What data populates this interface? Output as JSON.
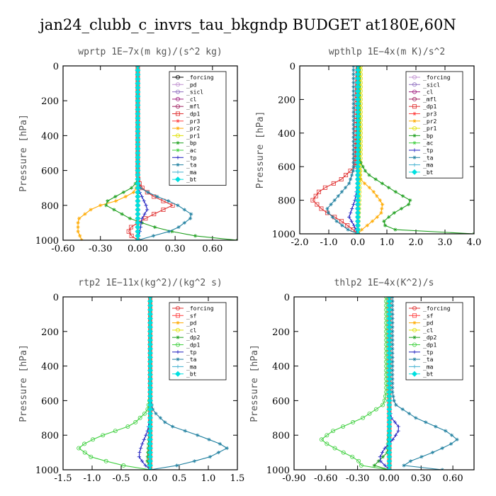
{
  "figure_title": "jan24_clubb_c_invrs_tau_bkgndp  BUDGET at180E,60N",
  "chart_data": [
    {
      "type": "line",
      "title": "wprtp   1E−7x(m kg)/(s^2 kg)",
      "ylabel": "Pressure [hPa]",
      "xlim": [
        -0.6,
        0.8
      ],
      "ylim": [
        1000,
        0
      ],
      "xticks": [
        "-0.60",
        "-0.30",
        "0.00",
        "0.30",
        "0.60"
      ],
      "xtick_values": [
        -0.6,
        -0.3,
        0.0,
        0.3,
        0.6
      ],
      "yticks": [
        "0",
        "200",
        "400",
        "600",
        "800",
        "1000"
      ],
      "ytick_values": [
        0,
        200,
        400,
        600,
        800,
        1000
      ],
      "legend_position": "top-right",
      "series": [
        {
          "name": "_forcing",
          "color": "#000000",
          "marker": "circle",
          "x": [
            0,
            0
          ],
          "y": [
            0,
            1000
          ]
        },
        {
          "name": "_pd",
          "color": "#c090d0",
          "marker": "circle",
          "x": [
            0,
            0
          ],
          "y": [
            0,
            1000
          ]
        },
        {
          "name": "_sicl",
          "color": "#9070c0",
          "marker": "circle",
          "x": [
            0,
            0
          ],
          "y": [
            0,
            1000
          ]
        },
        {
          "name": "_cl",
          "color": "#a02080",
          "marker": "circle",
          "x": [
            0,
            0
          ],
          "y": [
            0,
            1000
          ]
        },
        {
          "name": "_mfl",
          "color": "#a02060",
          "marker": "circle",
          "x": [
            0,
            0
          ],
          "y": [
            0,
            1000
          ]
        },
        {
          "name": "_dp1",
          "color": "#e03030",
          "marker": "square",
          "x": [
            0,
            0,
            0.02,
            0.1,
            0.28,
            0.1,
            -0.05,
            -0.08,
            0
          ],
          "y": [
            0,
            640,
            690,
            740,
            800,
            860,
            920,
            960,
            1000
          ]
        },
        {
          "name": "_pr3",
          "color": "#ff4040",
          "marker": "star",
          "x": [
            0,
            0,
            0,
            0
          ],
          "y": [
            0,
            600,
            800,
            1000
          ]
        },
        {
          "name": "_pr2",
          "color": "#ffaa00",
          "marker": "star",
          "x": [
            0,
            0,
            -0.02,
            -0.15,
            -0.35,
            -0.48,
            -0.48,
            -0.45
          ],
          "y": [
            0,
            660,
            720,
            770,
            810,
            880,
            950,
            1000
          ]
        },
        {
          "name": "_pr1",
          "color": "#e0e000",
          "marker": "circle",
          "x": [
            0,
            0,
            0
          ],
          "y": [
            0,
            700,
            1000
          ]
        },
        {
          "name": "_bp",
          "color": "#20a020",
          "marker": "star",
          "x": [
            0,
            0,
            -0.05,
            -0.18,
            -0.28,
            -0.05,
            0.2,
            0.5,
            0.8
          ],
          "y": [
            0,
            660,
            700,
            750,
            790,
            880,
            940,
            980,
            1000
          ]
        },
        {
          "name": "_ac",
          "color": "#40d040",
          "marker": "star",
          "x": [
            0,
            0,
            0
          ],
          "y": [
            0,
            700,
            1000
          ]
        },
        {
          "name": "_tp",
          "color": "#2020c0",
          "marker": "plus",
          "x": [
            0,
            0,
            0.04,
            0.08,
            0.03,
            0.02,
            0
          ],
          "y": [
            0,
            700,
            760,
            820,
            880,
            940,
            1000
          ]
        },
        {
          "name": "_ta",
          "color": "#2080a0",
          "marker": "star",
          "x": [
            0,
            0,
            0.02,
            0.12,
            0.3,
            0.45,
            0.3,
            0.05,
            0
          ],
          "y": [
            0,
            660,
            700,
            740,
            790,
            860,
            940,
            990,
            1000
          ]
        },
        {
          "name": "_ma",
          "color": "#40b0d0",
          "marker": "plus",
          "x": [
            0,
            0,
            0
          ],
          "y": [
            0,
            700,
            1000
          ]
        },
        {
          "name": "_bt",
          "color": "#00e0e0",
          "marker": "diamond",
          "x": [
            0,
            0
          ],
          "y": [
            0,
            1000
          ]
        }
      ]
    },
    {
      "type": "line",
      "title": "wpthlp   1E−4x(m K)/s^2",
      "ylabel": "Pressure [hPa]",
      "xlim": [
        -2.0,
        4.0
      ],
      "ylim": [
        1000,
        0
      ],
      "xticks": [
        "-2.0",
        "-1.0",
        "0.0",
        "1.0",
        "2.0",
        "3.0",
        "4.0"
      ],
      "xtick_values": [
        -2,
        -1,
        0,
        1,
        2,
        3,
        4
      ],
      "yticks": [
        "0",
        "200",
        "400",
        "600",
        "800",
        "1000"
      ],
      "ytick_values": [
        0,
        200,
        400,
        600,
        800,
        1000
      ],
      "legend_position": "top-right",
      "series": [
        {
          "name": "_forcing",
          "color": "#c090d0",
          "marker": "circle",
          "x": [
            0,
            0
          ],
          "y": [
            0,
            1000
          ]
        },
        {
          "name": "_sicl",
          "color": "#9070c0",
          "marker": "circle",
          "x": [
            0,
            0
          ],
          "y": [
            0,
            1000
          ]
        },
        {
          "name": "_cl",
          "color": "#a02080",
          "marker": "circle",
          "x": [
            0,
            0
          ],
          "y": [
            0,
            1000
          ]
        },
        {
          "name": "_mfl",
          "color": "#a02060",
          "marker": "circle",
          "x": [
            0,
            0
          ],
          "y": [
            0,
            1000
          ]
        },
        {
          "name": "_dp1",
          "color": "#e03030",
          "marker": "square",
          "x": [
            0,
            -0.1,
            -0.6,
            -1.3,
            -1.55,
            -1.2,
            -0.6,
            -0.2,
            0
          ],
          "y": [
            0,
            600,
            680,
            740,
            800,
            860,
            920,
            970,
            1000
          ]
        },
        {
          "name": "_pr3",
          "color": "#ff4040",
          "marker": "star",
          "x": [
            0,
            0,
            0,
            0
          ],
          "y": [
            0,
            600,
            800,
            1000
          ]
        },
        {
          "name": "_pr2",
          "color": "#ffaa00",
          "marker": "star",
          "x": [
            0.05,
            0.05,
            0.1,
            0.5,
            0.85,
            0.8,
            0.4,
            0.1,
            0
          ],
          "y": [
            0,
            600,
            680,
            740,
            820,
            880,
            940,
            980,
            1000
          ]
        },
        {
          "name": "_pr1",
          "color": "#e0e000",
          "marker": "circle",
          "x": [
            0.1,
            0.1,
            0.05,
            0
          ],
          "y": [
            0,
            500,
            800,
            1000
          ]
        },
        {
          "name": "_bp",
          "color": "#20a020",
          "marker": "star",
          "x": [
            0.05,
            0.05,
            0.3,
            1.2,
            1.9,
            1.2,
            0.8,
            1.5,
            4.0
          ],
          "y": [
            0,
            560,
            640,
            740,
            810,
            880,
            940,
            990,
            1000
          ]
        },
        {
          "name": "_ac",
          "color": "#40d040",
          "marker": "star",
          "x": [
            0,
            0,
            0
          ],
          "y": [
            0,
            700,
            1000
          ]
        },
        {
          "name": "_tp",
          "color": "#2020c0",
          "marker": "plus",
          "x": [
            0,
            0,
            -0.1,
            -0.3,
            -0.1,
            0
          ],
          "y": [
            0,
            700,
            800,
            900,
            960,
            1000
          ]
        },
        {
          "name": "_ta",
          "color": "#2080a0",
          "marker": "star",
          "x": [
            -0.15,
            -0.15,
            -0.3,
            -0.7,
            -1.1,
            -0.7,
            -0.3,
            0
          ],
          "y": [
            0,
            620,
            700,
            780,
            860,
            930,
            980,
            1000
          ]
        },
        {
          "name": "_ma",
          "color": "#40b0d0",
          "marker": "plus",
          "x": [
            0,
            0,
            0
          ],
          "y": [
            0,
            700,
            1000
          ]
        },
        {
          "name": "_bt",
          "color": "#00e0e0",
          "marker": "diamond",
          "x": [
            0,
            0
          ],
          "y": [
            0,
            1000
          ]
        }
      ]
    },
    {
      "type": "line",
      "title": "rtp2   1E−11x(kg^2)/(kg^2 s)",
      "ylabel": "Pressure [hPa]",
      "xlim": [
        -1.5,
        1.5
      ],
      "ylim": [
        1000,
        0
      ],
      "xticks": [
        "-1.5",
        "-1.0",
        "-0.5",
        "0.0",
        "0.5",
        "1.0",
        "1.5"
      ],
      "xtick_values": [
        -1.5,
        -1.0,
        -0.5,
        0.0,
        0.5,
        1.0,
        1.5
      ],
      "yticks": [
        "0",
        "200",
        "400",
        "600",
        "800",
        "1000"
      ],
      "ytick_values": [
        0,
        200,
        400,
        600,
        800,
        1000
      ],
      "legend_position": "top-right",
      "series": [
        {
          "name": "_forcing",
          "color": "#e03030",
          "marker": "circle",
          "x": [
            0,
            0
          ],
          "y": [
            0,
            1000
          ]
        },
        {
          "name": "_sf",
          "color": "#ff4040",
          "marker": "square",
          "x": [
            0,
            0
          ],
          "y": [
            0,
            1000
          ]
        },
        {
          "name": "_pd",
          "color": "#ffaa00",
          "marker": "star",
          "x": [
            0,
            0
          ],
          "y": [
            0,
            1000
          ]
        },
        {
          "name": "_cl",
          "color": "#e0e000",
          "marker": "circle",
          "x": [
            0,
            0
          ],
          "y": [
            0,
            1000
          ]
        },
        {
          "name": "_dp2",
          "color": "#20a020",
          "marker": "star",
          "x": [
            0,
            0,
            -0.05,
            0
          ],
          "y": [
            0,
            700,
            950,
            1000
          ]
        },
        {
          "name": "_dp1",
          "color": "#40d040",
          "marker": "circle",
          "x": [
            0,
            0,
            -0.05,
            -0.3,
            -0.9,
            -1.25,
            -1.0,
            -0.4,
            0
          ],
          "y": [
            0,
            580,
            660,
            740,
            810,
            870,
            930,
            980,
            1000
          ]
        },
        {
          "name": "_tp",
          "color": "#2020c0",
          "marker": "plus",
          "x": [
            0,
            0,
            -0.05,
            -0.15,
            -0.2,
            -0.1,
            0
          ],
          "y": [
            0,
            700,
            780,
            860,
            920,
            970,
            1000
          ]
        },
        {
          "name": "_ta",
          "color": "#2080a0",
          "marker": "star",
          "x": [
            0,
            0,
            0.05,
            0.3,
            0.9,
            1.35,
            1.0,
            0.4,
            0
          ],
          "y": [
            0,
            580,
            660,
            740,
            810,
            870,
            930,
            980,
            1000
          ]
        },
        {
          "name": "_ma",
          "color": "#40b0d0",
          "marker": "plus",
          "x": [
            0,
            0,
            0
          ],
          "y": [
            0,
            700,
            1000
          ]
        },
        {
          "name": "_bt",
          "color": "#00e0e0",
          "marker": "diamond",
          "x": [
            0,
            0
          ],
          "y": [
            0,
            1000
          ]
        }
      ]
    },
    {
      "type": "line",
      "title": "thlp2   1E−4x(K^2)/s",
      "ylabel": "Pressure [hPa]",
      "xlim": [
        -0.9,
        0.8
      ],
      "ylim": [
        1000,
        0
      ],
      "xticks": [
        "-0.90",
        "-0.60",
        "-0.30",
        "0.00",
        "0.30",
        "0.60"
      ],
      "xtick_values": [
        -0.9,
        -0.6,
        -0.3,
        0.0,
        0.3,
        0.6
      ],
      "yticks": [
        "0",
        "200",
        "400",
        "600",
        "800",
        "1000"
      ],
      "ytick_values": [
        0,
        200,
        400,
        600,
        800,
        1000
      ],
      "legend_position": "top-right",
      "series": [
        {
          "name": "_forcing",
          "color": "#e03030",
          "marker": "circle",
          "x": [
            0,
            0
          ],
          "y": [
            0,
            1000
          ]
        },
        {
          "name": "_sf",
          "color": "#ff4040",
          "marker": "square",
          "x": [
            0,
            0
          ],
          "y": [
            0,
            1000
          ]
        },
        {
          "name": "_pd",
          "color": "#ffaa00",
          "marker": "star",
          "x": [
            0,
            0
          ],
          "y": [
            0,
            1000
          ]
        },
        {
          "name": "_cl",
          "color": "#e0e000",
          "marker": "circle",
          "x": [
            0,
            0
          ],
          "y": [
            0,
            1000
          ]
        },
        {
          "name": "_dp2",
          "color": "#20a020",
          "marker": "star",
          "x": [
            0,
            0,
            -0.02,
            -0.15,
            -0.2,
            0
          ],
          "y": [
            0,
            700,
            900,
            980,
            995,
            1000
          ]
        },
        {
          "name": "_dp1",
          "color": "#40d040",
          "marker": "circle",
          "x": [
            -0.03,
            -0.03,
            -0.05,
            -0.25,
            -0.55,
            -0.65,
            -0.5,
            -0.3,
            -0.25,
            0
          ],
          "y": [
            0,
            550,
            620,
            700,
            780,
            830,
            880,
            940,
            990,
            1000
          ]
        },
        {
          "name": "_tp",
          "color": "#2020c0",
          "marker": "plus",
          "x": [
            0,
            0,
            0.02,
            0.1,
            0.04,
            -0.05,
            -0.1,
            0
          ],
          "y": [
            0,
            640,
            700,
            760,
            820,
            880,
            940,
            1000
          ]
        },
        {
          "name": "_ta",
          "color": "#2080a0",
          "marker": "star",
          "x": [
            0.03,
            0.03,
            0.05,
            0.25,
            0.55,
            0.65,
            0.45,
            0.2,
            0.1,
            0.5
          ],
          "y": [
            0,
            550,
            620,
            700,
            780,
            830,
            890,
            950,
            990,
            1000
          ]
        },
        {
          "name": "_ma",
          "color": "#40b0d0",
          "marker": "plus",
          "x": [
            0,
            0,
            0
          ],
          "y": [
            0,
            700,
            1000
          ]
        },
        {
          "name": "_bt",
          "color": "#00e0e0",
          "marker": "diamond",
          "x": [
            0,
            0
          ],
          "y": [
            0,
            1000
          ]
        }
      ]
    }
  ]
}
